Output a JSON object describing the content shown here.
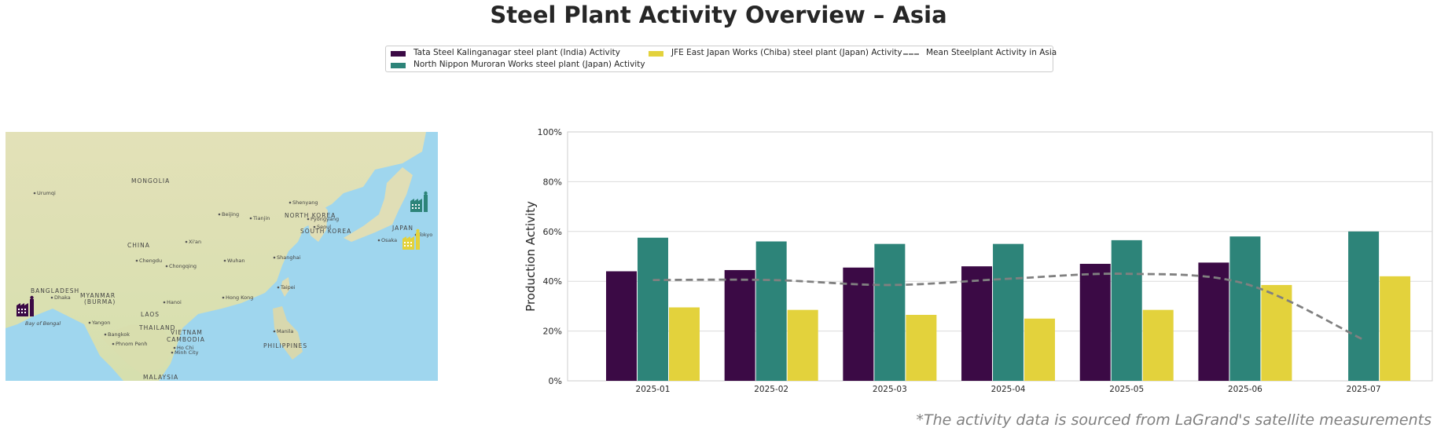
{
  "title": "Steel Plant Activity Overview – Asia",
  "footnote": "*The activity data is sourced from LaGrand's satellite measurements",
  "legend": {
    "items": [
      {
        "label": "Tata Steel Kalinganagar steel plant (India) Activity",
        "color": "#3b0a45"
      },
      {
        "label": "North Nippon Muroran Works steel plant (Japan) Activity",
        "color": "#2d8479"
      },
      {
        "label": "JFE East Japan Works (Chiba) steel plant (Japan) Activity",
        "color": "#e3d23c"
      },
      {
        "label": "Mean Steelplant Activity in Asia",
        "color": "#808080"
      }
    ]
  },
  "map": {
    "labels": [
      {
        "text": "Urumqi",
        "kind": "city"
      },
      {
        "text": "MONGOLIA",
        "kind": "country"
      },
      {
        "text": "Shenyang",
        "kind": "city"
      },
      {
        "text": "Beijing",
        "kind": "city"
      },
      {
        "text": "Tianjin",
        "kind": "city"
      },
      {
        "text": "NORTH KOREA",
        "kind": "country"
      },
      {
        "text": "Pyongyang",
        "kind": "city"
      },
      {
        "text": "Seoul",
        "kind": "city"
      },
      {
        "text": "SOUTH KOREA",
        "kind": "country"
      },
      {
        "text": "JAPAN",
        "kind": "country"
      },
      {
        "text": "Osaka",
        "kind": "city"
      },
      {
        "text": "Tokyo",
        "kind": "city"
      },
      {
        "text": "CHINA",
        "kind": "country"
      },
      {
        "text": "Xi'an",
        "kind": "city"
      },
      {
        "text": "Chengdu",
        "kind": "city"
      },
      {
        "text": "Chongqing",
        "kind": "city"
      },
      {
        "text": "Wuhan",
        "kind": "city"
      },
      {
        "text": "Shanghai",
        "kind": "city"
      },
      {
        "text": "BANGLADESH",
        "kind": "country"
      },
      {
        "text": "Dhaka",
        "kind": "city"
      },
      {
        "text": "MYANMAR",
        "kind": "country"
      },
      {
        "text": "(BURMA)",
        "kind": "country"
      },
      {
        "text": "Taipei",
        "kind": "city"
      },
      {
        "text": "Hanoi",
        "kind": "city"
      },
      {
        "text": "Hong Kong",
        "kind": "city"
      },
      {
        "text": "LAOS",
        "kind": "country"
      },
      {
        "text": "Bay of Bengal",
        "kind": "water"
      },
      {
        "text": "Yangon",
        "kind": "city"
      },
      {
        "text": "THAILAND",
        "kind": "country"
      },
      {
        "text": "VIETNAM",
        "kind": "country"
      },
      {
        "text": "Bangkok",
        "kind": "city"
      },
      {
        "text": "CAMBODIA",
        "kind": "country"
      },
      {
        "text": "Phnom Penh",
        "kind": "city"
      },
      {
        "text": "Ho Chi",
        "kind": "city"
      },
      {
        "text": "Minh City",
        "kind": "city"
      },
      {
        "text": "Manila",
        "kind": "city"
      },
      {
        "text": "PHILIPPINES",
        "kind": "country"
      },
      {
        "text": "MALAYSIA",
        "kind": "country"
      }
    ],
    "markers": [
      {
        "plant": "Tata Steel Kalinganagar",
        "color": "#3b0a45",
        "icon": "factory-icon"
      },
      {
        "plant": "North Nippon Muroran Works",
        "color": "#2d8479",
        "icon": "factory-icon"
      },
      {
        "plant": "JFE East Japan Works (Chiba)",
        "color": "#e3d23c",
        "icon": "factory-icon"
      }
    ]
  },
  "chart_data": {
    "type": "bar",
    "title": "",
    "xlabel": "",
    "ylabel": "Production Activity",
    "ylim": [
      0,
      100
    ],
    "yticks": [
      "0%",
      "20%",
      "40%",
      "60%",
      "80%",
      "100%"
    ],
    "categories": [
      "2025-01",
      "2025-02",
      "2025-03",
      "2025-04",
      "2025-05",
      "2025-06",
      "2025-07"
    ],
    "grid": "y",
    "legend_position": "top-center",
    "series": [
      {
        "name": "Tata Steel Kalinganagar steel plant (India) Activity",
        "color": "#3b0a45",
        "type": "bar",
        "values": [
          44,
          44.5,
          45.5,
          46,
          47,
          47.5,
          null
        ]
      },
      {
        "name": "North Nippon Muroran Works steel plant (Japan) Activity",
        "color": "#2d8479",
        "type": "bar",
        "values": [
          57.5,
          56,
          55,
          55,
          56.5,
          58,
          60
        ]
      },
      {
        "name": "JFE East Japan Works (Chiba) steel plant (Japan) Activity",
        "color": "#e3d23c",
        "type": "bar",
        "values": [
          29.5,
          28.5,
          26.5,
          25,
          28.5,
          38.5,
          42
        ]
      },
      {
        "name": "Mean Steelplant Activity in Asia",
        "color": "#808080",
        "type": "line",
        "style": "dashed",
        "values": [
          40.5,
          40.5,
          38.5,
          41,
          43,
          39,
          16.5
        ]
      }
    ]
  }
}
